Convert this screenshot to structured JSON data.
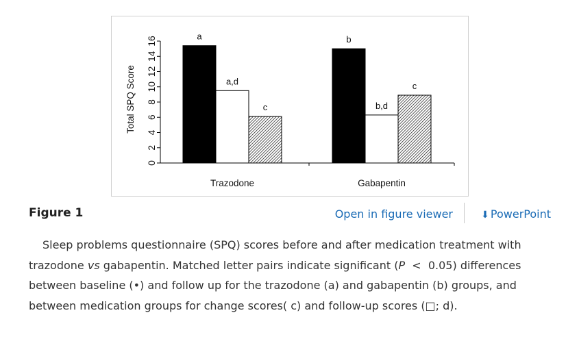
{
  "chart_data": {
    "type": "bar",
    "ylabel": "Total SPQ Score",
    "ylim": [
      0,
      16
    ],
    "yticks": [
      0,
      2,
      4,
      6,
      8,
      10,
      12,
      14,
      16
    ],
    "categories": [
      "Trazodone",
      "Gabapentin"
    ],
    "series": [
      {
        "name": "Baseline",
        "fill": "#000000",
        "values": [
          15.4,
          15.0
        ]
      },
      {
        "name": "Follow-up",
        "fill": "#ffffff",
        "values": [
          9.5,
          6.3
        ]
      },
      {
        "name": "Change",
        "fill": "hatch",
        "values": [
          6.1,
          8.9
        ]
      }
    ],
    "annotations": [
      [
        "a",
        "a,d",
        "c"
      ],
      [
        "b",
        "b,d",
        "c"
      ]
    ]
  },
  "figure": {
    "label": "Figure 1",
    "open_viewer_label": "Open in figure viewer",
    "powerpoint_label": "PowerPoint",
    "download_icon": "download-icon"
  },
  "caption": {
    "part1": "Sleep problems questionnaire (SPQ) scores before and after medication treatment with trazodone ",
    "vs": "vs",
    "part2": " gabapentin. Matched letter pairs indicate significant (",
    "p": "P",
    "part3": "  <  0.05) differences between baseline (•) and follow up for the trazodone (a) and gabapentin (b) groups, and between medication groups for change scores( c) and follow-up scores (□; d)."
  }
}
